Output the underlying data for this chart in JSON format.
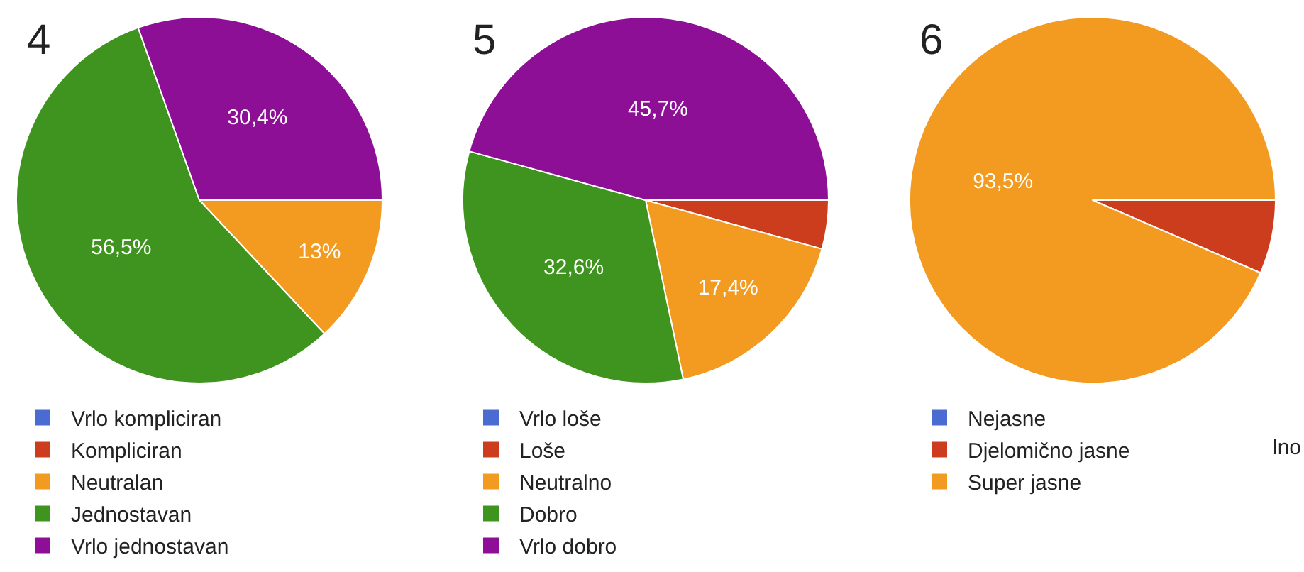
{
  "chart_data": [
    {
      "type": "pie",
      "title": "4",
      "legend": "bottom",
      "categories": [
        "Vrlo kompliciran",
        "Kompliciran",
        "Neutralan",
        "Jednostavan",
        "Vrlo jednostavan"
      ],
      "values": [
        0,
        0,
        13,
        56.5,
        30.4
      ],
      "colors": [
        "#4a6bd1",
        "#cc3d1e",
        "#f29b20",
        "#3f941f",
        "#8c0f96"
      ],
      "value_labels": [
        null,
        null,
        "13%",
        "56,5%",
        "30,4%"
      ]
    },
    {
      "type": "pie",
      "title": "5",
      "legend": "bottom",
      "categories": [
        "Vrlo loše",
        "Loše",
        "Neutralno",
        "Dobro",
        "Vrlo dobro"
      ],
      "values": [
        0,
        4.3,
        17.4,
        32.6,
        45.7
      ],
      "colors": [
        "#4a6bd1",
        "#cc3d1e",
        "#f29b20",
        "#3f941f",
        "#8c0f96"
      ],
      "value_labels": [
        null,
        null,
        "17,4%",
        "32,6%",
        "45,7%"
      ]
    },
    {
      "type": "pie",
      "title": "6",
      "legend": "bottom",
      "categories": [
        "Nejasne",
        "Djelomično jasne",
        "Super jasne"
      ],
      "values": [
        0,
        6.5,
        93.5
      ],
      "colors": [
        "#4a6bd1",
        "#cc3d1e",
        "#f29b20"
      ],
      "value_labels": [
        null,
        null,
        "93,5%"
      ],
      "annotations": [
        "lno"
      ]
    }
  ]
}
